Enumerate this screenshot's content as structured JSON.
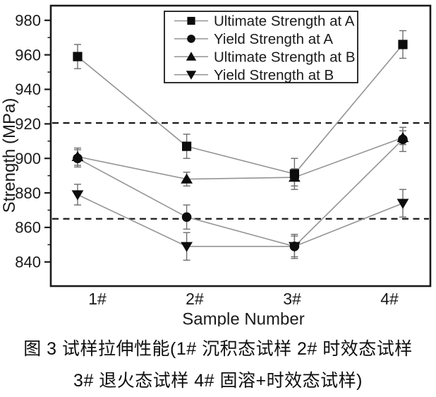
{
  "chart_data": {
    "type": "line",
    "title": "",
    "xlabel": "Sample Number",
    "ylabel": "Strength (MPa)",
    "categories": [
      "1#",
      "2#",
      "3#",
      "4#"
    ],
    "yticks": [
      840,
      860,
      880,
      900,
      920,
      940,
      960,
      980
    ],
    "yticks_minor": [
      850,
      870,
      890,
      910,
      930,
      950,
      970
    ],
    "ylim": [
      826,
      988.5
    ],
    "grid": false,
    "legend_position": "top-center-inside",
    "reference_lines": [
      {
        "y": 920.5,
        "style": "dashed"
      },
      {
        "y": 865,
        "style": "dashed"
      }
    ],
    "series": [
      {
        "name": "Ultimate Strength at A",
        "marker": "square",
        "values": [
          959,
          907,
          891,
          966
        ],
        "errors": [
          7,
          7,
          9,
          8
        ]
      },
      {
        "name": "Yield Strength at A",
        "marker": "circle",
        "values": [
          900,
          866,
          849,
          911
        ],
        "errors": [
          5,
          7,
          6,
          7
        ]
      },
      {
        "name": "Ultimate Strength at B",
        "marker": "triangle-up",
        "values": [
          901,
          888,
          889,
          912
        ],
        "errors": [
          5,
          4,
          5,
          4
        ]
      },
      {
        "name": "Yield Strength at B",
        "marker": "triangle-down",
        "values": [
          879,
          849,
          849,
          874
        ],
        "errors": [
          6,
          8,
          7,
          8
        ]
      }
    ],
    "colors": {
      "marker": "#0d0d0d",
      "series_line": "#949494",
      "error_bar": "#6e6e6e",
      "axis": "#1a1a1a",
      "reference_line": "#1a1a1a",
      "background": "#ffffff",
      "text": "#1a1a1a"
    }
  },
  "caption": {
    "line1": "图 3  试样拉伸性能(1# 沉积态试样 2# 时效态试样",
    "line2": "3# 退火态试样 4# 固溶+时效态试样)"
  }
}
